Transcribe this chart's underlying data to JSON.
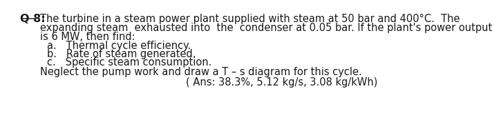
{
  "background_color": "#ffffff",
  "label": "Q 8:",
  "line1": "The turbine in a steam power plant supplied with steam at 50 bar and 400°C.  The",
  "line2": "expanding steam  exhausted into  the  condenser at 0.05 bar. If the plant's power output",
  "line3": "is 6 MW, then find:",
  "item_a": "a.   Thermal cycle efficiency.",
  "item_b": "b.   Rate of steam generated.",
  "item_c": "c.   Specific steam consumption.",
  "line_neglect": "Neglect the pump work and draw a T – s diagram for this cycle.",
  "ans": "( Ans: 38.3%, 5.12 kg/s, 3.08 kg/kWh)",
  "font_size_main": 10.5,
  "font_size_label": 11.5,
  "text_color": "#1a1a1a"
}
